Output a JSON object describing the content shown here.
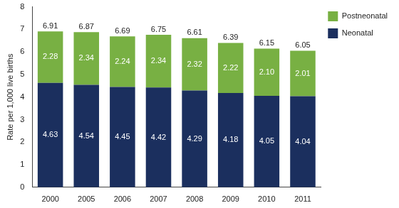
{
  "chart_data": {
    "type": "bar",
    "stacked": true,
    "data_labels": true,
    "grid": false,
    "legend": "top-right",
    "y_label": "Rate per 1,000 live births",
    "categories": [
      "2000",
      "2005",
      "2006",
      "2007",
      "2008",
      "2009",
      "2010",
      "2011"
    ],
    "series": [
      {
        "name": "Neonatal",
        "color": "#1b2f5e",
        "values": [
          4.63,
          4.54,
          4.45,
          4.42,
          4.29,
          4.18,
          4.05,
          4.04
        ]
      },
      {
        "name": "Postneonatal",
        "color": "#78b043",
        "values": [
          2.28,
          2.34,
          2.24,
          2.34,
          2.32,
          2.22,
          2.1,
          2.01
        ],
        "value_labels": [
          "2.28",
          "2.34",
          "2.24",
          "2.34",
          "2.32",
          "2.22",
          "2.10",
          "2.01"
        ]
      }
    ],
    "totals": [
      6.91,
      6.87,
      6.69,
      6.75,
      6.61,
      6.39,
      6.15,
      6.05
    ],
    "ylim": [
      0,
      8
    ],
    "yticks": [
      0,
      1,
      2,
      3,
      4,
      5,
      6,
      7,
      8
    ]
  }
}
